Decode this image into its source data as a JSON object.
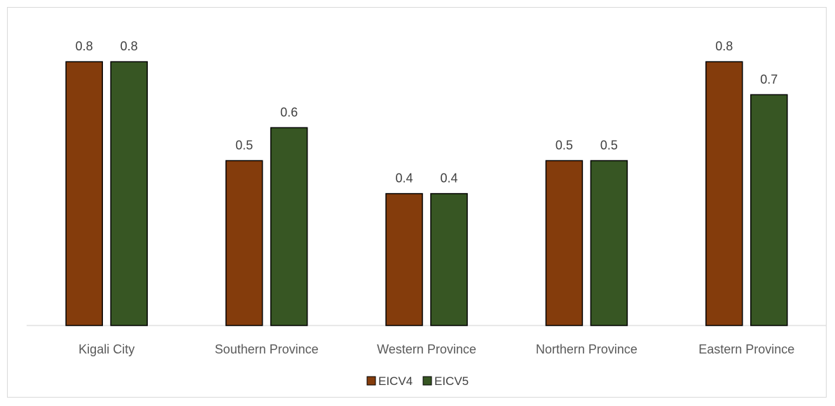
{
  "chart_data": {
    "type": "bar",
    "title": "",
    "xlabel": "",
    "ylabel": "",
    "ylim": [
      0,
      0.8
    ],
    "grid": false,
    "legend_position": "bottom",
    "categories": [
      "Kigali City",
      "Southern Province",
      "Western Province",
      "Northern Province",
      "Eastern Province"
    ],
    "series": [
      {
        "name": "EICV4",
        "color": "#843c0c",
        "values": [
          0.8,
          0.5,
          0.4,
          0.5,
          0.8
        ],
        "labels": [
          "0.8",
          "0.5",
          "0.4",
          "0.5",
          "0.8"
        ]
      },
      {
        "name": "EICV5",
        "color": "#375623",
        "values": [
          0.8,
          0.6,
          0.4,
          0.5,
          0.7
        ],
        "labels": [
          "0.8",
          "0.6",
          "0.4",
          "0.5",
          "0.7"
        ]
      }
    ]
  }
}
